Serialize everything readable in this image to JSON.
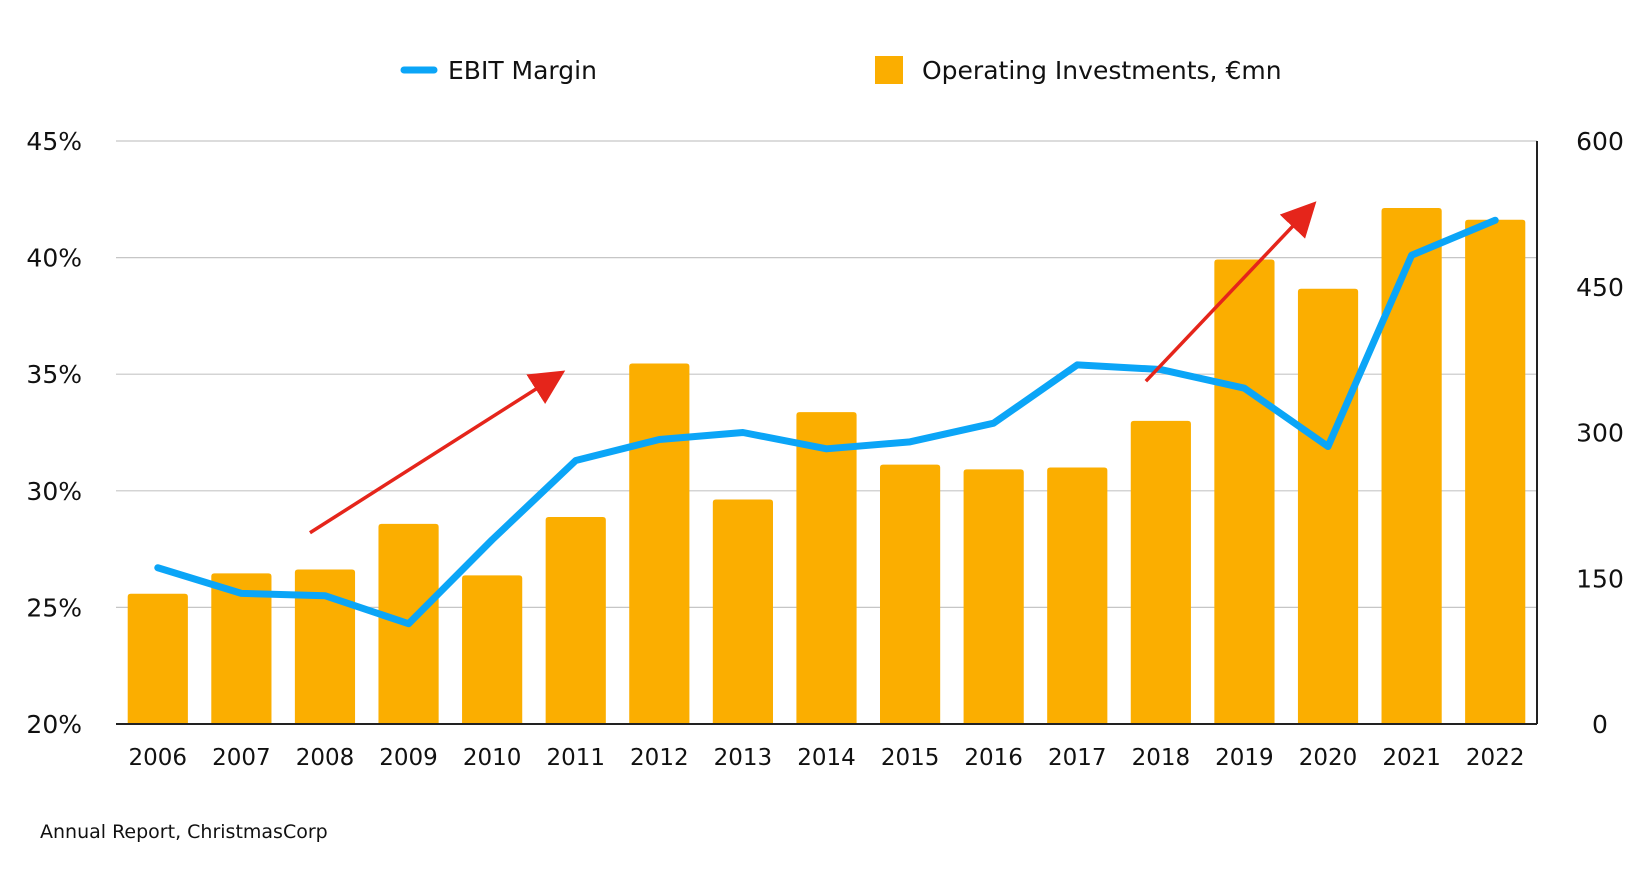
{
  "chart_data": {
    "type": "bar+line",
    "categories": [
      "2006",
      "2007",
      "2008",
      "2009",
      "2010",
      "2011",
      "2012",
      "2013",
      "2014",
      "2015",
      "2016",
      "2017",
      "2018",
      "2019",
      "2020",
      "2021",
      "2022"
    ],
    "series": [
      {
        "name": "Operating Investments, €mn",
        "type": "bar",
        "axis": "right",
        "color": "#FBAE00",
        "values": [
          134,
          155,
          159,
          206,
          153,
          213,
          371,
          231,
          321,
          267,
          262,
          264,
          312,
          478,
          448,
          531,
          519
        ]
      },
      {
        "name": "EBIT Margin",
        "type": "line",
        "axis": "left",
        "color": "#0BA5F7",
        "values": [
          26.7,
          25.6,
          25.5,
          24.3,
          27.9,
          31.3,
          32.2,
          32.5,
          31.8,
          32.1,
          32.9,
          35.4,
          35.2,
          34.4,
          31.9,
          40.1,
          41.6
        ]
      }
    ],
    "y_left": {
      "min": 20,
      "max": 45,
      "ticks": [
        "20%",
        "25%",
        "30%",
        "35%",
        "40%",
        "45%"
      ]
    },
    "y_right": {
      "min": 0,
      "max": 600,
      "ticks": [
        "0",
        "150",
        "300",
        "450",
        "600"
      ]
    },
    "grid": true,
    "legend_position": "top",
    "trend_arrows": [
      {
        "from": [
          "2008",
          28.2
        ],
        "to": [
          "2012",
          35.0
        ]
      },
      {
        "from": [
          "2018",
          34.7
        ],
        "to": [
          "2021",
          42.2
        ]
      }
    ],
    "arrow_color": "#E5251B",
    "source": "Annual Report, ChristmasCorp"
  }
}
